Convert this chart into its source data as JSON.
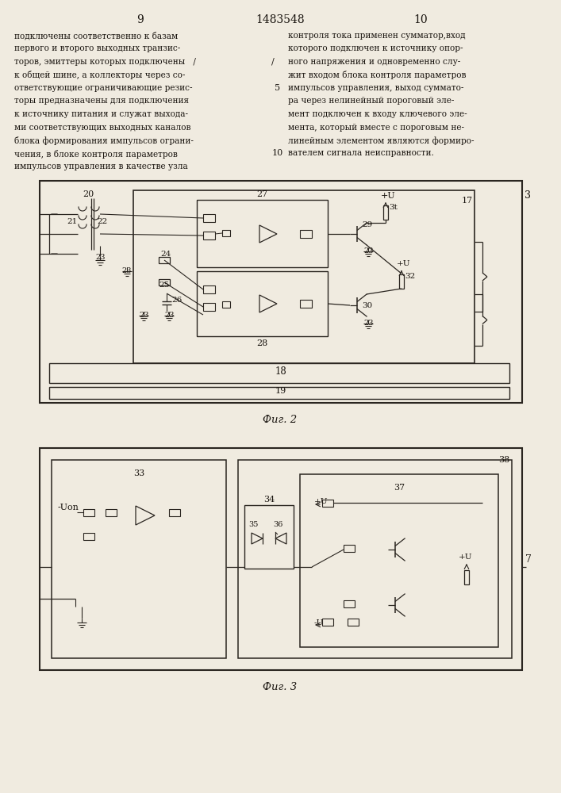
{
  "page_left": "9",
  "page_right": "10",
  "patent_number": "1483548",
  "text_left": [
    "подключены соответственно к базам",
    "первого и второго выходных транзис-",
    "торов, эмиттеры которых подключены   /",
    "к общей шине, а коллекторы через со-",
    "ответствующие ограничивающие резис-",
    "торы предназначены для подключения",
    "к источнику питания и служат выхода-",
    "ми соответствующих выходных каналов",
    "блока формирования импульсов ограни-",
    "чения, в блоке контроля параметров",
    "импульсов управления в качестве узла"
  ],
  "text_right": [
    "контроля тока применен сумматор,вход",
    "которого подключен к источнику опор-",
    "ного напряжения и одновременно слу-",
    "жит входом блока контроля параметров",
    "импульсов управления, выход суммато-",
    "ра через нелинейный пороговый эле-",
    "мент подключен к входу ключевого эле-",
    "мента, который вместе с пороговым не-",
    "линейным элементом являются формиро-",
    "вателем сигнала неисправности."
  ],
  "fig2_label": "Фиг. 2",
  "fig3_label": "Фиг. 3",
  "bg_color": "#f0ebe0",
  "lc": "#2a2520",
  "tc": "#1a1510"
}
